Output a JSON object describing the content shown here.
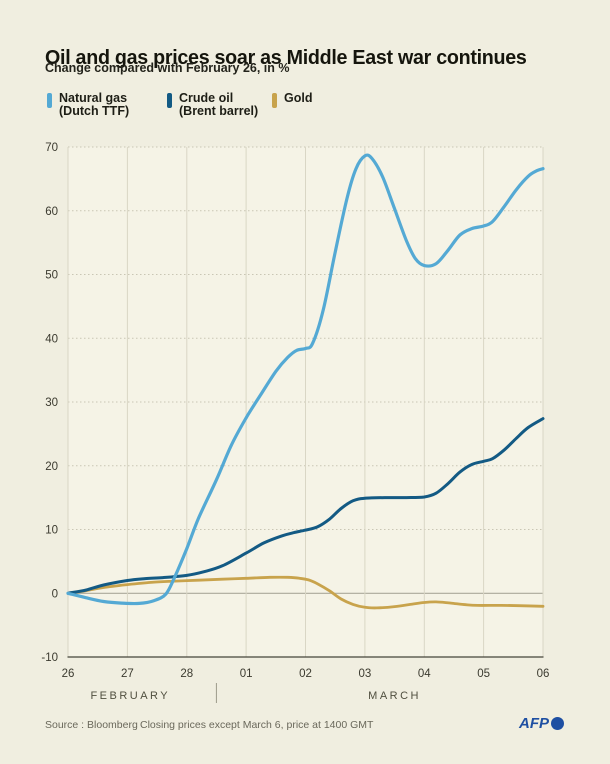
{
  "header": {
    "title": "Oil and gas prices soar as Middle East war continues",
    "subtitle": "Change compared with February 26, in %"
  },
  "legend": {
    "items": [
      {
        "line1": "Natural gas",
        "line2": "(Dutch TTF)",
        "color": "#54a9d4"
      },
      {
        "line1": "Crude oil",
        "line2": "(Brent barrel)",
        "color": "#135a84"
      },
      {
        "line1": "Gold",
        "line2": "",
        "color": "#c8a34c"
      }
    ]
  },
  "chart_data": {
    "type": "line",
    "title": "Oil and gas prices soar as Middle East war continues",
    "ylabel": "Change compared with February 26, in %",
    "ylim": [
      -10,
      70
    ],
    "y_ticks": [
      70,
      60,
      50,
      40,
      30,
      20,
      10,
      0,
      -10
    ],
    "x_tick_labels": [
      "26",
      "27",
      "28",
      "01",
      "02",
      "03",
      "04",
      "05",
      "06"
    ],
    "months": [
      {
        "label": "FEBRUARY",
        "center_index": 1.05
      },
      {
        "label": "MARCH",
        "center_index": 5.5
      }
    ],
    "month_divider_index": 2.5,
    "grid": {
      "horizontal": "dotted",
      "vertical": "solid",
      "zero_line": true,
      "legend_position": "top-left"
    },
    "series": [
      {
        "name": "Natural gas (Dutch TTF)",
        "color": "#54a9d4",
        "stroke_width": 3.2,
        "points": [
          [
            0,
            0
          ],
          [
            0.3,
            -0.7
          ],
          [
            0.6,
            -1.3
          ],
          [
            0.9,
            -1.55
          ],
          [
            1.2,
            -1.6
          ],
          [
            1.45,
            -1.15
          ],
          [
            1.65,
            -0.1
          ],
          [
            1.8,
            2.6
          ],
          [
            2,
            7
          ],
          [
            2.2,
            11.8
          ],
          [
            2.5,
            17.8
          ],
          [
            2.75,
            23.2
          ],
          [
            3,
            27.5
          ],
          [
            3.25,
            31.2
          ],
          [
            3.5,
            34.8
          ],
          [
            3.7,
            37
          ],
          [
            3.85,
            38.1
          ],
          [
            4,
            38.4
          ],
          [
            4.12,
            39.2
          ],
          [
            4.3,
            44.5
          ],
          [
            4.5,
            53.5
          ],
          [
            4.7,
            62
          ],
          [
            4.85,
            66.6
          ],
          [
            5,
            68.6
          ],
          [
            5.12,
            68.2
          ],
          [
            5.3,
            65.3
          ],
          [
            5.5,
            60.3
          ],
          [
            5.7,
            55.3
          ],
          [
            5.85,
            52.5
          ],
          [
            6,
            51.4
          ],
          [
            6.2,
            51.7
          ],
          [
            6.4,
            53.8
          ],
          [
            6.6,
            56.2
          ],
          [
            6.8,
            57.2
          ],
          [
            7,
            57.6
          ],
          [
            7.15,
            58.3
          ],
          [
            7.35,
            60.7
          ],
          [
            7.55,
            63.3
          ],
          [
            7.75,
            65.4
          ],
          [
            7.9,
            66.3
          ],
          [
            8,
            66.6
          ]
        ]
      },
      {
        "name": "Crude oil (Brent barrel)",
        "color": "#135a84",
        "stroke_width": 3,
        "points": [
          [
            0,
            0
          ],
          [
            0.3,
            0.5
          ],
          [
            0.6,
            1.3
          ],
          [
            1,
            2
          ],
          [
            1.3,
            2.3
          ],
          [
            1.6,
            2.45
          ],
          [
            2,
            2.8
          ],
          [
            2.3,
            3.4
          ],
          [
            2.6,
            4.3
          ],
          [
            3,
            6.3
          ],
          [
            3.3,
            7.9
          ],
          [
            3.6,
            9
          ],
          [
            3.8,
            9.5
          ],
          [
            4,
            9.9
          ],
          [
            4.2,
            10.4
          ],
          [
            4.4,
            11.6
          ],
          [
            4.6,
            13.3
          ],
          [
            4.8,
            14.5
          ],
          [
            5,
            14.9
          ],
          [
            5.4,
            15
          ],
          [
            5.7,
            15
          ],
          [
            6,
            15.1
          ],
          [
            6.2,
            15.7
          ],
          [
            6.4,
            17.2
          ],
          [
            6.6,
            19
          ],
          [
            6.8,
            20.2
          ],
          [
            7,
            20.7
          ],
          [
            7.15,
            21.1
          ],
          [
            7.35,
            22.5
          ],
          [
            7.55,
            24.3
          ],
          [
            7.75,
            26
          ],
          [
            8,
            27.4
          ]
        ]
      },
      {
        "name": "Gold",
        "color": "#c8a34c",
        "stroke_width": 2.8,
        "points": [
          [
            0,
            0
          ],
          [
            0.3,
            0.4
          ],
          [
            0.6,
            0.9
          ],
          [
            1,
            1.35
          ],
          [
            1.4,
            1.7
          ],
          [
            1.8,
            1.9
          ],
          [
            2.2,
            2.05
          ],
          [
            2.6,
            2.2
          ],
          [
            3,
            2.35
          ],
          [
            3.4,
            2.5
          ],
          [
            3.7,
            2.5
          ],
          [
            3.9,
            2.35
          ],
          [
            4.05,
            2.1
          ],
          [
            4.2,
            1.5
          ],
          [
            4.4,
            0.4
          ],
          [
            4.6,
            -0.9
          ],
          [
            4.8,
            -1.75
          ],
          [
            5,
            -2.2
          ],
          [
            5.2,
            -2.3
          ],
          [
            5.5,
            -2.1
          ],
          [
            5.8,
            -1.7
          ],
          [
            6,
            -1.45
          ],
          [
            6.2,
            -1.35
          ],
          [
            6.45,
            -1.55
          ],
          [
            6.7,
            -1.8
          ],
          [
            6.9,
            -1.9
          ],
          [
            7.3,
            -1.9
          ],
          [
            7.6,
            -1.95
          ],
          [
            8,
            -2.05
          ]
        ]
      }
    ]
  },
  "footer": {
    "source": "Source : Bloomberg",
    "note": "Closing prices except March 6, price at 1400 GMT",
    "logo": "AFP"
  },
  "colors": {
    "page_bg": "#f0eee0",
    "plot_bg": "#f5f3e6",
    "grid_horizontal": "#c9c6b4",
    "grid_vertical": "#d9d6c5",
    "zero_line": "#aaa89a",
    "axis_line": "#45443a",
    "tick_text": "#3b3a2f",
    "month_text": "#504f3f",
    "divider": "#9b998a",
    "afp_blue": "#1e4fa2"
  }
}
